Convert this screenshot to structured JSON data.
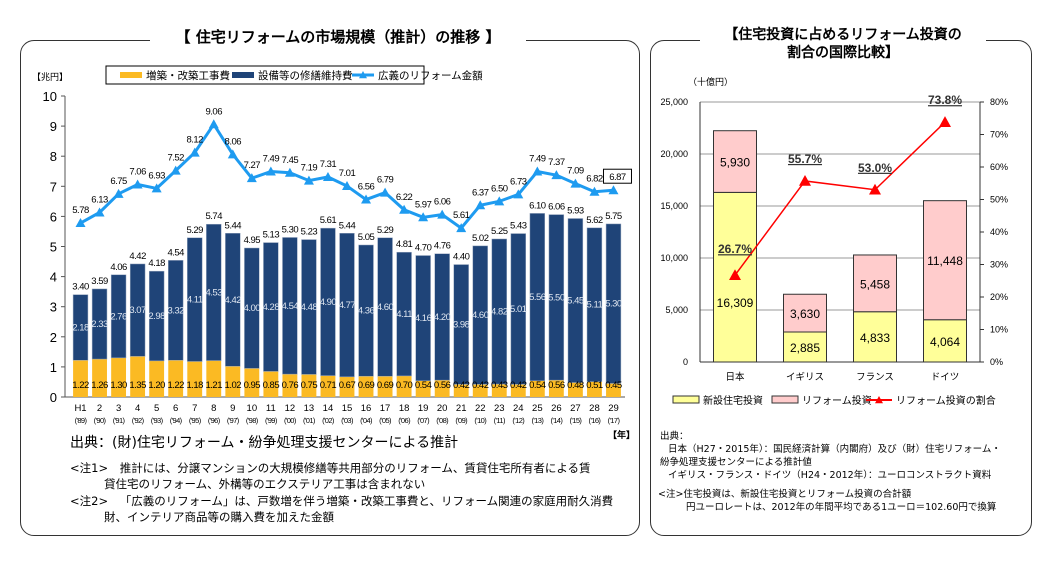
{
  "left": {
    "title": "【 住宅リフォームの市場規模（推計）の推移 】",
    "unit_label": "【兆円】",
    "year_unit_label": "【年】",
    "source": "出典：(財)住宅リフォーム・紛争処理支援センターによる推計",
    "note1_head": "<注1>",
    "note1_line1": "推計には、分譲マンションの大規模修繕等共用部分のリフォーム、賃貸住宅所有者による賃",
    "note1_line2": "貸住宅のリフォーム、外構等のエクステリア工事は含まれない",
    "note2_head": "<注2>",
    "note2_line1": "「広義のリフォーム」は、戸数増を伴う増築・改築工事費と、リフォーム関連の家庭用耐久消費",
    "note2_line2": "財、インテリア商品等の購入費を加えた金額"
  },
  "right": {
    "title_line1": "【住宅投資に占めるリフォーム投資の",
    "title_line2": "割合の国際比較】",
    "unit_label": "（十億円）",
    "source_head": "出典：",
    "source_line1": "日本（H27・2015年）：国民経済計算（内閣府）及び（財）住宅リフォーム・",
    "source_line2": "紛争処理支援センターによる推計値",
    "source_line3": "イギリス・フランス・ドイツ（H24・2012年）：ユーロコンストラクト資料",
    "note_line1": "<注>住宅投資は、新設住宅投資とリフォーム投資の合計額",
    "note_line2": "円ユーロレートは、2012年の年間平均である1ユーロ＝102.60円で換算"
  },
  "chart_data": [
    {
      "type": "bar",
      "stacked": true,
      "title": "【 住宅リフォームの市場規模（推計）の推移 】",
      "ylabel": "【兆円】",
      "xlabel": "【年】",
      "ylim": [
        0,
        10
      ],
      "yticks": [
        0,
        1,
        2,
        3,
        4,
        5,
        6,
        7,
        8,
        9,
        10
      ],
      "legend_position": "top",
      "categories": [
        "H1",
        "2",
        "3",
        "4",
        "5",
        "6",
        "7",
        "8",
        "9",
        "10",
        "11",
        "12",
        "13",
        "14",
        "15",
        "16",
        "17",
        "18",
        "19",
        "20",
        "21",
        "22",
        "23",
        "24",
        "25",
        "26",
        "27",
        "28",
        "29"
      ],
      "categories_sub": [
        "('89)",
        "('90)",
        "('91)",
        "('92)",
        "('93)",
        "('94)",
        "('95)",
        "('96)",
        "('97)",
        "('98)",
        "('99)",
        "('00)",
        "('01)",
        "('02)",
        "('03)",
        "('04)",
        "('05)",
        "('06)",
        "('07)",
        "('08)",
        "('09)",
        "('10)",
        "('11)",
        "('12)",
        "('13)",
        "('14)",
        "('15)",
        "('16)",
        "('17)"
      ],
      "series": [
        {
          "name": "増築・改築工事費",
          "kind": "bar",
          "color": "#FBBA23",
          "values": [
            1.22,
            1.26,
            1.3,
            1.35,
            1.2,
            1.22,
            1.18,
            1.21,
            1.02,
            0.95,
            0.85,
            0.76,
            0.75,
            0.71,
            0.67,
            0.69,
            0.69,
            0.7,
            0.54,
            0.56,
            0.42,
            0.42,
            0.43,
            0.42,
            0.54,
            0.56,
            0.48,
            0.51,
            0.45
          ]
        },
        {
          "name": "設備等の修繕維持費",
          "kind": "bar",
          "color": "#1F4478",
          "values": [
            2.18,
            2.33,
            2.76,
            3.07,
            2.98,
            3.32,
            4.11,
            4.53,
            4.42,
            4.0,
            4.28,
            4.54,
            4.48,
            4.9,
            4.77,
            4.36,
            4.6,
            4.11,
            4.16,
            4.2,
            3.98,
            4.6,
            4.82,
            5.01,
            5.56,
            5.5,
            5.45,
            5.11,
            5.3
          ]
        },
        {
          "name": "広義のリフォーム金額",
          "kind": "line",
          "color": "#1E9BF0",
          "values": [
            5.78,
            6.13,
            6.75,
            7.06,
            6.93,
            7.52,
            8.12,
            9.06,
            8.06,
            7.27,
            7.49,
            7.45,
            7.19,
            7.31,
            7.01,
            6.56,
            6.79,
            6.22,
            5.97,
            6.06,
            5.61,
            6.37,
            6.5,
            6.73,
            7.49,
            7.37,
            7.09,
            6.82,
            6.87
          ]
        }
      ],
      "totals": [
        3.4,
        3.59,
        4.06,
        4.42,
        4.18,
        4.54,
        5.29,
        5.74,
        5.44,
        4.95,
        5.13,
        5.3,
        5.23,
        5.61,
        5.44,
        5.05,
        5.29,
        4.81,
        4.7,
        4.76,
        4.4,
        5.02,
        5.25,
        5.43,
        6.1,
        6.06,
        5.93,
        5.62,
        5.75
      ]
    },
    {
      "type": "bar",
      "stacked": true,
      "title": "【住宅投資に占めるリフォーム投資の割合の国際比較】",
      "ylabel": "（十億円）",
      "ylim": [
        0,
        25000
      ],
      "yticks": [
        "0",
        "5,000",
        "10,000",
        "15,000",
        "20,000",
        "25,000"
      ],
      "y2lim": [
        0,
        80
      ],
      "y2ticks": [
        "0%",
        "10%",
        "20%",
        "30%",
        "40%",
        "50%",
        "60%",
        "70%",
        "80%"
      ],
      "grid": true,
      "legend_position": "bottom",
      "categories": [
        "日本",
        "イギリス",
        "フランス",
        "ドイツ"
      ],
      "series": [
        {
          "name": "新設住宅投資",
          "kind": "bar",
          "color": "#FFFF99",
          "values": [
            16309,
            2885,
            4833,
            4064
          ],
          "labels": [
            "16,309",
            "2,885",
            "4,833",
            "4,064"
          ]
        },
        {
          "name": "リフォーム投資",
          "kind": "bar",
          "color": "#FFCCCC",
          "values": [
            5930,
            3630,
            5458,
            11448
          ],
          "labels": [
            "5,930",
            "3,630",
            "5,458",
            "11,448"
          ]
        },
        {
          "name": "リフォーム投資の割合",
          "kind": "line",
          "axis": "right",
          "color": "#FF0000",
          "values": [
            26.7,
            55.7,
            53.0,
            73.8
          ],
          "labels": [
            "26.7%",
            "55.7%",
            "53.0%",
            "73.8%"
          ]
        }
      ]
    }
  ]
}
